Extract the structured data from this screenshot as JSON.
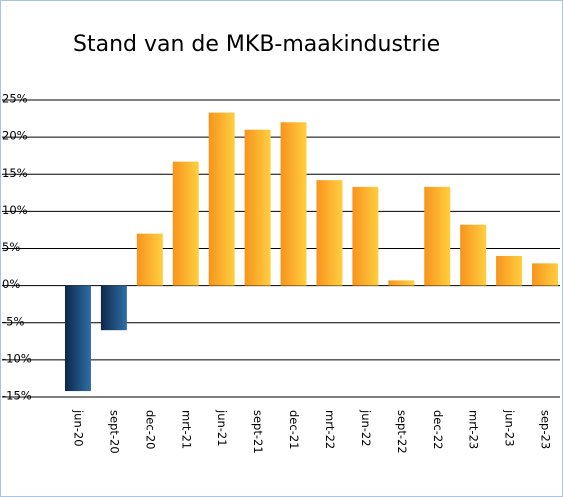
{
  "chart_data": {
    "type": "bar",
    "title": "Stand van de MKB-maakindustrie",
    "categories": [
      "jun-20",
      "sept-20",
      "dec-20",
      "mrt-21",
      "jun-21",
      "sept-21",
      "dec-21",
      "mrt-22",
      "jun-22",
      "sept-22",
      "dec-22",
      "mrt-23",
      "jun-23",
      "sep-23"
    ],
    "values": [
      -14.2,
      -6.0,
      7.0,
      16.7,
      23.3,
      21.0,
      22.0,
      14.2,
      13.3,
      0.7,
      13.3,
      8.2,
      4.0,
      3.0
    ],
    "colors": {
      "positive": [
        "#f7941d",
        "#ffcf3f"
      ],
      "negative": [
        "#0c2748",
        "#2f6fa8"
      ]
    },
    "ylim": [
      -15,
      25
    ],
    "yticks": [
      {
        "value": -15,
        "label": "-15%"
      },
      {
        "value": -10,
        "label": "-10%"
      },
      {
        "value": -5,
        "label": "-5%"
      },
      {
        "value": 0,
        "label": "0%"
      },
      {
        "value": 5,
        "label": "5%"
      },
      {
        "value": 10,
        "label": "10%"
      },
      {
        "value": 15,
        "label": "15%"
      },
      {
        "value": 20,
        "label": "20%"
      },
      {
        "value": 25,
        "label": "25%"
      }
    ],
    "grid": true
  }
}
